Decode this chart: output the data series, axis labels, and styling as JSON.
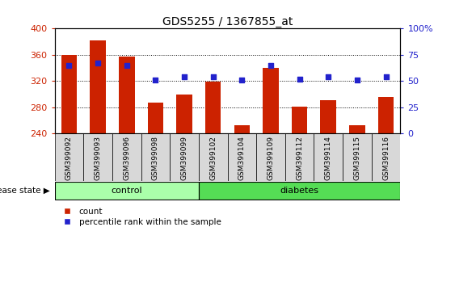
{
  "title": "GDS5255 / 1367855_at",
  "samples": [
    "GSM399092",
    "GSM399093",
    "GSM399096",
    "GSM399098",
    "GSM399099",
    "GSM399102",
    "GSM399104",
    "GSM399109",
    "GSM399112",
    "GSM399114",
    "GSM399115",
    "GSM399116"
  ],
  "counts": [
    360,
    382,
    357,
    287,
    300,
    319,
    253,
    340,
    281,
    291,
    253,
    296
  ],
  "percentiles": [
    65,
    67,
    65,
    51,
    54,
    54,
    51,
    65,
    52,
    54,
    51,
    54
  ],
  "groups": [
    "control",
    "control",
    "control",
    "control",
    "control",
    "diabetes",
    "diabetes",
    "diabetes",
    "diabetes",
    "diabetes",
    "diabetes",
    "diabetes"
  ],
  "ymin": 240,
  "ymax": 400,
  "yticks": [
    240,
    280,
    320,
    360,
    400
  ],
  "right_yticks": [
    0,
    25,
    50,
    75,
    100
  ],
  "bar_color": "#cc2200",
  "dot_color": "#2222cc",
  "control_color": "#aaffaa",
  "diabetes_color": "#55dd55",
  "tick_bg_color": "#d8d8d8",
  "axis_label_color_left": "#cc2200",
  "axis_label_color_right": "#2222cc",
  "legend_count_label": "count",
  "legend_pct_label": "percentile rank within the sample",
  "disease_state_label": "disease state",
  "control_label": "control",
  "diabetes_label": "diabetes",
  "right_tick_labels": [
    "0",
    "25",
    "50",
    "75",
    "100%"
  ]
}
